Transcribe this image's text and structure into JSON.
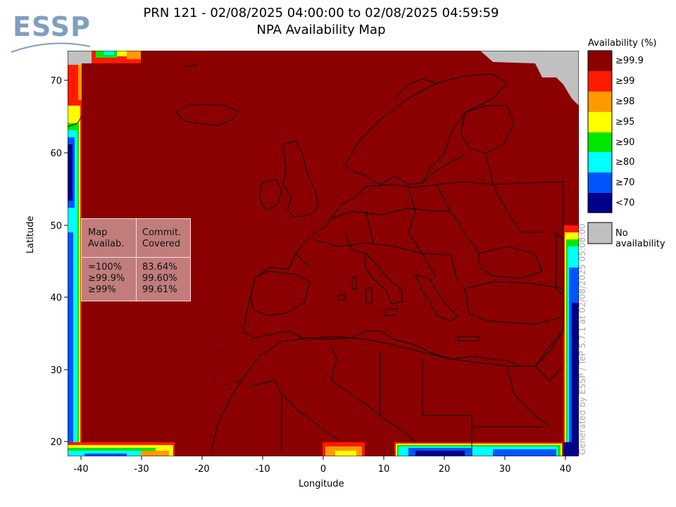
{
  "logo": {
    "text": "ESSP"
  },
  "title": {
    "line1": "PRN 121 - 02/08/2025 04:00:00 to 02/08/2025 04:59:59",
    "line2": "NPA Availability Map"
  },
  "axes": {
    "xlabel": "Longitude",
    "ylabel": "Latitude",
    "xlim": [
      -42,
      42
    ],
    "ylim": [
      18,
      73
    ],
    "xticks": [
      "-40",
      "-30",
      "-20",
      "-10",
      "0",
      "10",
      "20",
      "30",
      "40"
    ],
    "yticks": [
      "20",
      "30",
      "40",
      "50",
      "60",
      "70"
    ]
  },
  "legend": {
    "title": "Availability (%)",
    "items": [
      {
        "label": "≥99.9",
        "color": "#8b0000"
      },
      {
        "label": "≥99",
        "color": "#ff1a00"
      },
      {
        "label": "≥98",
        "color": "#ff9900"
      },
      {
        "label": "≥95",
        "color": "#ffff00"
      },
      {
        "label": "≥90",
        "color": "#00e600"
      },
      {
        "label": "≥80",
        "color": "#00ffff"
      },
      {
        "label": "≥70",
        "color": "#0055ff"
      },
      {
        "label": "<70",
        "color": "#000088"
      }
    ],
    "no_availability": {
      "label": "No availability",
      "color": "#c0c0c0"
    }
  },
  "stats": {
    "header_col1": "Map\nAvailab.",
    "header_col2": "Commit.\nCovered",
    "rows_col1": "=100%\n≥99.9%\n≥99%",
    "rows_col2": "83.64%\n99.60%\n99.61%"
  },
  "watermark": "Generated by ESSP / TeP 5.7.1 at 02/08/2025 05:08:00"
}
